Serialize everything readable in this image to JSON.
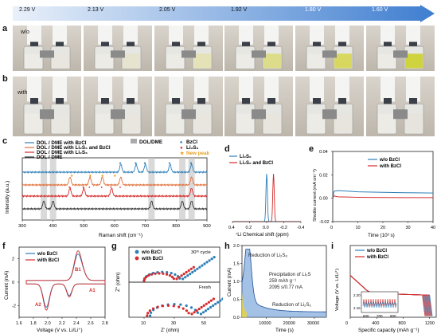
{
  "voltage_bar": {
    "voltages": [
      "2.29 V",
      "2.13 V",
      "2.05 V",
      "1.92 V",
      "1.80 V",
      "1.60 V"
    ],
    "gradient_start": "#e9f0fa",
    "gradient_end": "#3f7ed0"
  },
  "panels": {
    "a": {
      "letter": "a",
      "label": "w/o"
    },
    "b": {
      "letter": "b",
      "label": "with"
    },
    "c": {
      "letter": "c"
    },
    "d": {
      "letter": "d"
    },
    "e": {
      "letter": "e"
    },
    "f": {
      "letter": "f"
    },
    "g": {
      "letter": "g"
    },
    "h": {
      "letter": "h"
    },
    "i": {
      "letter": "i"
    }
  },
  "photos": {
    "a_solution_colors": [
      "#e8e6df",
      "#e6e4cf",
      "#e4e2b6",
      "#dcdc8a",
      "#d8d860",
      "#cfd33e"
    ],
    "b_solution_colors": [
      "#e9e7e1",
      "#e8e6df",
      "#e8e6df",
      "#e7e5dd",
      "#e7e5dd",
      "#e6e4dc"
    ]
  },
  "chart_data": [
    {
      "id": "c",
      "type": "line",
      "xlabel": "Raman shift (cm⁻¹)",
      "ylabel": "Intensity (a.u.)",
      "xlim": [
        300,
        900
      ],
      "xticks": [
        "300",
        "400",
        "500",
        "600",
        "700",
        "800",
        "900"
      ],
      "legend_curves": [
        {
          "name": "DOL / DME with BzCl",
          "color": "#2d7fb8"
        },
        {
          "name": "DOL / DME with Li₂S₆ and BzCl",
          "color": "#e0703a"
        },
        {
          "name": "DOL / DME with Li₂S₆",
          "color": "#d62b2b"
        },
        {
          "name": "DOL / DME",
          "color": "#333333"
        }
      ],
      "legend_markers": [
        {
          "name": "DOL/DME",
          "symbol": "■",
          "color": "#aaaaaa"
        },
        {
          "name": "BzCl",
          "symbol": "♠",
          "color": "#2d7fb8"
        },
        {
          "name": "Li₂S₆",
          "symbol": "●",
          "color": "#d62b2b"
        },
        {
          "name": "New peak",
          "symbol": "★",
          "color": "#e8a020"
        }
      ],
      "shaded_bands": [
        370,
        400,
        720,
        820,
        850
      ],
      "blue_peaks": [
        620,
        670,
        700,
        780,
        850
      ],
      "red_peaks": [
        455,
        500,
        520,
        560,
        590,
        620
      ],
      "new_peaks": [
        460,
        520,
        560,
        600
      ]
    },
    {
      "id": "d",
      "type": "line",
      "xlabel": "⁷Li Chemical shift (ppm)",
      "xlim": [
        0.4,
        -0.4
      ],
      "xticks": [
        "0.4",
        "0.2",
        "0.0",
        "-0.2",
        "-0.4"
      ],
      "series": [
        {
          "name": "Li₂S₆",
          "color": "#2d7fb8",
          "peak": 0.0
        },
        {
          "name": "Li₂S₆ and BzCl",
          "color": "#d62b2b",
          "peak": -0.08
        }
      ]
    },
    {
      "id": "e",
      "type": "line",
      "xlabel": "Time (10³ s)",
      "ylabel": "Shuttle current (mA cm⁻²)",
      "xlim": [
        0,
        40
      ],
      "ylim": [
        -0.02,
        0.04
      ],
      "xticks": [
        "0",
        "10",
        "20",
        "30",
        "40"
      ],
      "yticks": [
        "-0.02",
        "0.00",
        "0.02",
        "0.04"
      ],
      "series": [
        {
          "name": "w/o BzCl",
          "color": "#2d7fb8",
          "t": [
            0,
            0.5,
            2,
            5,
            10,
            20,
            30,
            40
          ],
          "i": [
            0.0,
            0.006,
            0.0065,
            0.0062,
            0.0055,
            0.005,
            0.0047,
            0.0045
          ]
        },
        {
          "name": "with BzCl",
          "color": "#d62b2b",
          "t": [
            0,
            0.5,
            2,
            10,
            20,
            30,
            40
          ],
          "i": [
            0.0,
            0.002,
            0.0012,
            0.0008,
            0.0006,
            0.0005,
            0.0005
          ]
        }
      ]
    },
    {
      "id": "f",
      "type": "line",
      "xlabel": "Voltage (V vs. Li/Li⁺)",
      "ylabel": "Current (mA)",
      "xlim": [
        1.6,
        2.8
      ],
      "ylim": [
        -3,
        3
      ],
      "xticks": [
        "1.6",
        "1.8",
        "2.0",
        "2.2",
        "2.4",
        "2.6",
        "2.8"
      ],
      "yticks": [
        "-2",
        "0",
        "2"
      ],
      "annotations": [
        "A2",
        "B1",
        "A1"
      ],
      "series": [
        {
          "name": "w/o BzCl",
          "color": "#2d7fb8"
        },
        {
          "name": "with BzCl",
          "color": "#d62b2b"
        }
      ]
    },
    {
      "id": "g",
      "type": "scatter",
      "xlabel": "Z' (ohm)",
      "ylabel": "Z'' (ohm)",
      "xlim": [
        0,
        60
      ],
      "xticks": [
        "10",
        "30",
        "50"
      ],
      "annotations": [
        "30ᵗʰ cycle",
        "Fresh"
      ],
      "series": [
        {
          "name": "w/o BzCl",
          "color": "#2d7fb8"
        },
        {
          "name": "with BzCl",
          "color": "#d62b2b"
        }
      ]
    },
    {
      "id": "h",
      "type": "area",
      "xlabel": "Time (s)",
      "ylabel": "Current (mA)",
      "xlim": [
        0,
        35000
      ],
      "ylim": [
        0,
        2.0
      ],
      "xticks": [
        "10000",
        "20000",
        "30000"
      ],
      "yticks": [
        "0.0",
        "0.5",
        "1.0",
        "1.5",
        "2.0"
      ],
      "annotations": [
        "Reduction of Li₂S₈",
        "Precipitation of Li₂S",
        "259 mAh g⁻¹",
        "2095 s/0.77 mA",
        "Reduction of Li₂S₆"
      ]
    },
    {
      "id": "i",
      "type": "line",
      "xlabel": "Specific capacity (mAh g⁻¹)",
      "ylabel": "Voltage (V vs. Li/Li⁺)",
      "xlim": [
        0,
        1300
      ],
      "ylim": [
        1.7,
        2.9
      ],
      "xticks": [
        "0",
        "400",
        "800",
        "1200"
      ],
      "inset_yticks": [
        "2.20",
        "2.16"
      ],
      "inset_xticks": [
        "600",
        "700",
        "800"
      ],
      "series": [
        {
          "name": "w/o BzCl",
          "color": "#2d7fb8"
        },
        {
          "name": "with BzCl",
          "color": "#d62b2b"
        }
      ]
    }
  ]
}
